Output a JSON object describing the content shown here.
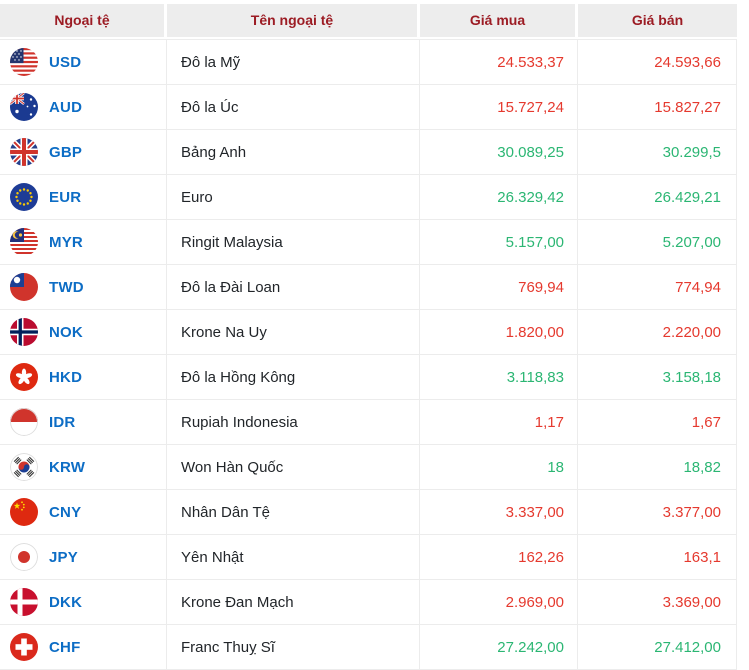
{
  "chart_data": {
    "type": "table",
    "title": "",
    "columns": [
      "Ngoại tệ",
      "Tên ngoại tệ",
      "Giá mua",
      "Giá bán"
    ],
    "rows": [
      [
        "USD",
        "Đô la Mỹ",
        "24.533,37",
        "24.593,66"
      ],
      [
        "AUD",
        "Đô la Úc",
        "15.727,24",
        "15.827,27"
      ],
      [
        "GBP",
        "Bảng Anh",
        "30.089,25",
        "30.299,5"
      ],
      [
        "EUR",
        "Euro",
        "26.329,42",
        "26.429,21"
      ],
      [
        "MYR",
        "Ringit Malaysia",
        "5.157,00",
        "5.207,00"
      ],
      [
        "TWD",
        "Đô la Đài Loan",
        "769,94",
        "774,94"
      ],
      [
        "NOK",
        "Krone Na Uy",
        "1.820,00",
        "2.220,00"
      ],
      [
        "HKD",
        "Đô la Hồng Kông",
        "3.118,83",
        "3.158,18"
      ],
      [
        "IDR",
        "Rupiah Indonesia",
        "1,17",
        "1,67"
      ],
      [
        "KRW",
        "Won Hàn Quốc",
        "18",
        "18,82"
      ],
      [
        "CNY",
        "Nhân Dân Tệ",
        "3.337,00",
        "3.377,00"
      ],
      [
        "JPY",
        "Yên Nhật",
        "162,26",
        "163,1"
      ],
      [
        "DKK",
        "Krone Đan Mạch",
        "2.969,00",
        "3.369,00"
      ],
      [
        "CHF",
        "Franc Thuỵ Sĩ",
        "27.242,00",
        "27.412,00"
      ]
    ]
  },
  "header": {
    "columns": [
      {
        "label": "Ngoại tệ"
      },
      {
        "label": "Tên ngoại tệ"
      },
      {
        "label": "Giá mua"
      },
      {
        "label": "Giá bán"
      }
    ]
  },
  "colors": {
    "header_text": "#9c1c24",
    "header_bg": "#ededed",
    "code_blue": "#0d6dc5",
    "price_red": "#e5392e",
    "price_green": "#2bb673",
    "border": "#ececec"
  },
  "rates": [
    {
      "code": "USD",
      "flag": "us",
      "name": "Đô la Mỹ",
      "buy": "24.533,37",
      "sell": "24.593,66",
      "color": "red"
    },
    {
      "code": "AUD",
      "flag": "au",
      "name": "Đô la Úc",
      "buy": "15.727,24",
      "sell": "15.827,27",
      "color": "red"
    },
    {
      "code": "GBP",
      "flag": "gb",
      "name": "Bảng Anh",
      "buy": "30.089,25",
      "sell": "30.299,5",
      "color": "green"
    },
    {
      "code": "EUR",
      "flag": "eu",
      "name": "Euro",
      "buy": "26.329,42",
      "sell": "26.429,21",
      "color": "green"
    },
    {
      "code": "MYR",
      "flag": "my",
      "name": "Ringit Malaysia",
      "buy": "5.157,00",
      "sell": "5.207,00",
      "color": "green"
    },
    {
      "code": "TWD",
      "flag": "tw",
      "name": "Đô la Đài Loan",
      "buy": "769,94",
      "sell": "774,94",
      "color": "red"
    },
    {
      "code": "NOK",
      "flag": "no",
      "name": "Krone Na Uy",
      "buy": "1.820,00",
      "sell": "2.220,00",
      "color": "red"
    },
    {
      "code": "HKD",
      "flag": "hk",
      "name": "Đô la Hồng Kông",
      "buy": "3.118,83",
      "sell": "3.158,18",
      "color": "green"
    },
    {
      "code": "IDR",
      "flag": "id",
      "name": "Rupiah Indonesia",
      "buy": "1,17",
      "sell": "1,67",
      "color": "red"
    },
    {
      "code": "KRW",
      "flag": "kr",
      "name": "Won Hàn Quốc",
      "buy": "18",
      "sell": "18,82",
      "color": "green"
    },
    {
      "code": "CNY",
      "flag": "cn",
      "name": "Nhân Dân Tệ",
      "buy": "3.337,00",
      "sell": "3.377,00",
      "color": "red"
    },
    {
      "code": "JPY",
      "flag": "jp",
      "name": "Yên Nhật",
      "buy": "162,26",
      "sell": "163,1",
      "color": "red"
    },
    {
      "code": "DKK",
      "flag": "dk",
      "name": "Krone Đan Mạch",
      "buy": "2.969,00",
      "sell": "3.369,00",
      "color": "red"
    },
    {
      "code": "CHF",
      "flag": "ch",
      "name": "Franc Thuỵ Sĩ",
      "buy": "27.242,00",
      "sell": "27.412,00",
      "color": "green"
    }
  ]
}
